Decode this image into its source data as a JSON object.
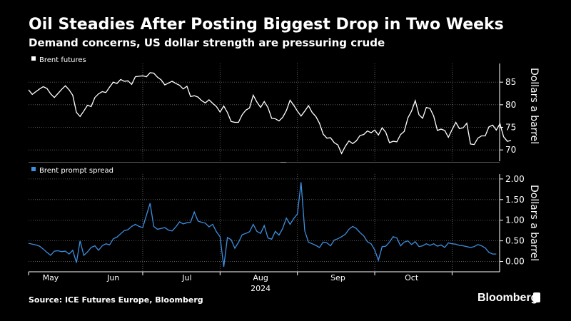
{
  "title": "Oil Steadies After Posting Biggest Drop in Two Weeks",
  "subtitle": "Demand concerns, US dollar strength are pressuring crude",
  "source": "Source: ICE Futures Europe, Bloomberg",
  "brand": "Bloomberg",
  "colors": {
    "background": "#000000",
    "brent_futures": "#ffffff",
    "prompt_spread": "#3d8fe0",
    "grid": "#6b6b6b"
  },
  "chart_data": [
    {
      "type": "line",
      "title": "Brent futures",
      "legend": "Brent futures",
      "ylabel": "Dollars a barrel",
      "ylim": [
        67.5,
        88.5
      ],
      "yticks": [
        70,
        75,
        80,
        85
      ],
      "ytick_labels": [
        "70",
        "75",
        "80",
        "85"
      ],
      "x_range": [
        0,
        125
      ],
      "series": [
        {
          "name": "Brent futures",
          "values": [
            83.3,
            82.3,
            82.9,
            83.5,
            84.0,
            83.6,
            82.4,
            81.6,
            82.5,
            83.4,
            84.2,
            83.3,
            82.1,
            78.3,
            77.4,
            78.6,
            79.9,
            79.6,
            81.6,
            82.4,
            82.9,
            82.7,
            83.9,
            85.0,
            84.7,
            85.6,
            85.2,
            85.3,
            84.5,
            86.2,
            86.3,
            86.4,
            86.2,
            87.1,
            87.0,
            86.1,
            85.5,
            84.4,
            84.8,
            85.2,
            84.7,
            84.3,
            83.5,
            84.1,
            81.8,
            82.0,
            81.7,
            80.9,
            80.4,
            81.1,
            80.3,
            79.6,
            78.4,
            79.7,
            78.3,
            76.3,
            76.1,
            76.1,
            77.8,
            78.8,
            79.3,
            82.1,
            80.6,
            79.4,
            80.7,
            79.4,
            77.0,
            76.9,
            76.4,
            77.2,
            78.7,
            81.0,
            79.9,
            78.6,
            77.5,
            78.6,
            79.8,
            78.3,
            77.4,
            75.9,
            73.5,
            72.6,
            72.7,
            71.6,
            71.1,
            69.2,
            70.8,
            72.0,
            71.4,
            72.0,
            73.2,
            73.4,
            74.2,
            73.8,
            74.4,
            73.3,
            74.9,
            73.9,
            71.6,
            71.9,
            71.8,
            73.4,
            74.1,
            77.1,
            78.6,
            80.9,
            77.8,
            77.0,
            79.4,
            79.2,
            77.5,
            74.3,
            74.6,
            74.3,
            72.8,
            74.5,
            76.1,
            74.7,
            74.9,
            75.9,
            71.3,
            71.2,
            72.6,
            73.1,
            73.1,
            75.1,
            75.5,
            74.4,
            75.8,
            72.9,
            71.9,
            72.1
          ]
        }
      ]
    },
    {
      "type": "line",
      "title": "Brent prompt spread",
      "legend": "Brent prompt spread",
      "ylabel": "Dollars a barrel",
      "ylim": [
        -0.25,
        2.05
      ],
      "yticks": [
        0.0,
        0.5,
        1.0,
        1.5,
        2.0
      ],
      "ytick_labels": [
        "0.00",
        "0.50",
        "1.00",
        "1.50",
        "2.00"
      ],
      "x_range": [
        0,
        125
      ],
      "series": [
        {
          "name": "Brent prompt spread",
          "values": [
            0.44,
            0.42,
            0.4,
            0.37,
            0.3,
            0.22,
            0.15,
            0.25,
            0.26,
            0.24,
            0.25,
            0.18,
            0.27,
            -0.03,
            0.5,
            0.15,
            0.23,
            0.34,
            0.38,
            0.27,
            0.38,
            0.43,
            0.4,
            0.55,
            0.59,
            0.67,
            0.75,
            0.77,
            0.85,
            0.9,
            0.85,
            0.82,
            1.12,
            1.41,
            0.85,
            0.78,
            0.8,
            0.82,
            0.76,
            0.74,
            0.84,
            0.96,
            0.91,
            0.94,
            0.95,
            1.2,
            0.98,
            0.95,
            0.93,
            0.84,
            0.9,
            0.72,
            0.6,
            -0.13,
            0.58,
            0.53,
            0.32,
            0.46,
            0.65,
            0.68,
            0.72,
            0.9,
            0.73,
            0.68,
            0.87,
            0.57,
            0.54,
            0.73,
            0.64,
            0.8,
            1.05,
            0.9,
            1.04,
            1.15,
            1.92,
            0.74,
            0.47,
            0.43,
            0.39,
            0.34,
            0.47,
            0.45,
            0.38,
            0.52,
            0.55,
            0.6,
            0.66,
            0.78,
            0.85,
            0.8,
            0.7,
            0.62,
            0.48,
            0.43,
            0.28,
            0.03,
            0.36,
            0.37,
            0.47,
            0.6,
            0.57,
            0.38,
            0.47,
            0.5,
            0.41,
            0.48,
            0.36,
            0.38,
            0.43,
            0.39,
            0.43,
            0.37,
            0.4,
            0.34,
            0.45,
            0.43,
            0.42,
            0.39,
            0.38,
            0.36,
            0.34,
            0.36,
            0.41,
            0.38,
            0.33,
            0.22,
            0.18,
            0.18
          ]
        }
      ]
    }
  ],
  "x_axis": {
    "months": [
      {
        "label": "May",
        "x": 6
      },
      {
        "label": "Jun",
        "x": 23
      },
      {
        "label": "Jul",
        "x": 43
      },
      {
        "label": "Aug",
        "x": 63
      },
      {
        "label": "Sep",
        "x": 84
      },
      {
        "label": "Oct",
        "x": 104
      }
    ],
    "gridlines": [
      31,
      52,
      73,
      94,
      115
    ],
    "ticks": [
      0,
      31,
      52,
      73,
      94,
      115
    ],
    "year_label": "2024",
    "year_x": 63
  }
}
